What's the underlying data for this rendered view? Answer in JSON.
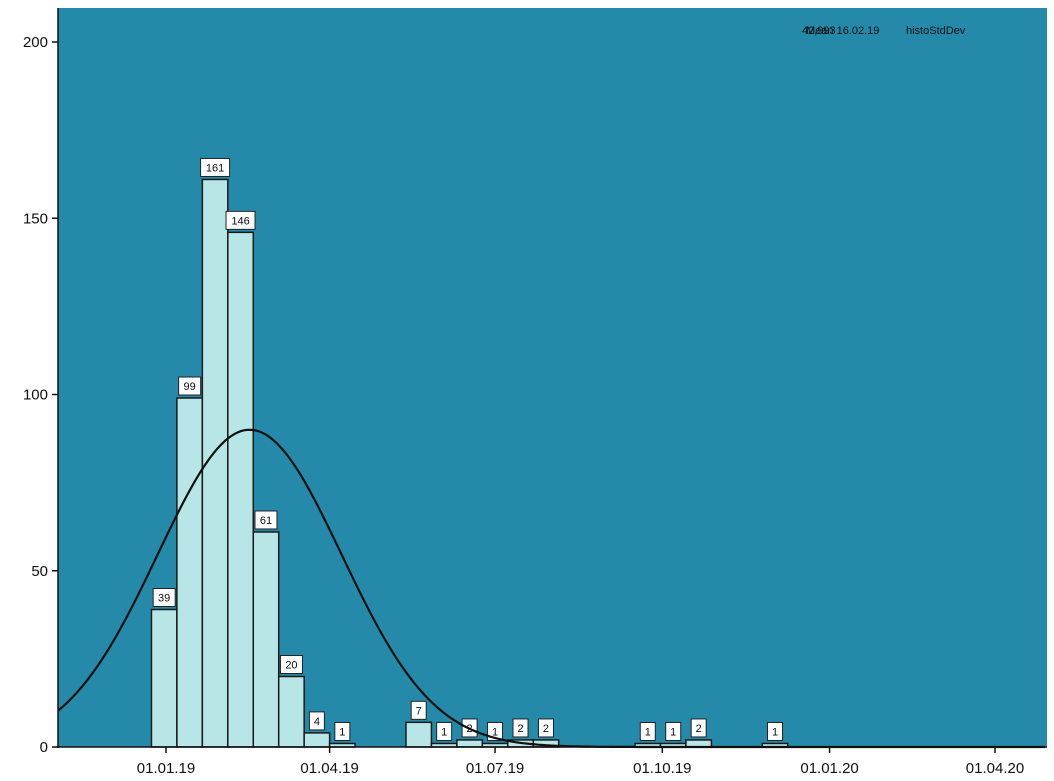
{
  "chart_data": {
    "type": "bar",
    "subtype": "histogram",
    "title": "",
    "xlabel": "",
    "ylabel": "",
    "ylim": [
      0,
      200
    ],
    "y_ticks": [
      0,
      50,
      100,
      150,
      200
    ],
    "x_ticks": [
      "01.01.19",
      "01.04.19",
      "01.07.19",
      "01.10.19",
      "01.01.20",
      "01.04.20"
    ],
    "bin_width_days": 14,
    "grid": false,
    "bins": [
      {
        "start": "24.12.18",
        "value": 39
      },
      {
        "start": "07.01.19",
        "value": 99
      },
      {
        "start": "21.01.19",
        "value": 161
      },
      {
        "start": "04.02.19",
        "value": 146
      },
      {
        "start": "18.02.19",
        "value": 61
      },
      {
        "start": "04.03.19",
        "value": 20
      },
      {
        "start": "18.03.19",
        "value": 4
      },
      {
        "start": "01.04.19",
        "value": 1
      },
      {
        "start": "13.05.19",
        "value": 7
      },
      {
        "start": "27.05.19",
        "value": 1
      },
      {
        "start": "10.06.19",
        "value": 2
      },
      {
        "start": "24.06.19",
        "value": 1
      },
      {
        "start": "08.07.19",
        "value": 2
      },
      {
        "start": "22.07.19",
        "value": 2
      },
      {
        "start": "16.09.19",
        "value": 1
      },
      {
        "start": "30.09.19",
        "value": 1
      },
      {
        "start": "14.10.19",
        "value": 2
      },
      {
        "start": "25.11.19",
        "value": 1
      }
    ],
    "normal_curve": {
      "mean": "16.02.19",
      "peak": 90
    },
    "legend": {
      "position": "top-right",
      "overlapping_text": [
        "Mean 16.02.19",
        "histoStdDev",
        "42,993"
      ]
    },
    "colors": {
      "background": "#2589aa",
      "bar_fill": "#b8e6e6",
      "bar_stroke": "#1a1a1a",
      "curve": "#111111",
      "axis": "#111111"
    }
  }
}
